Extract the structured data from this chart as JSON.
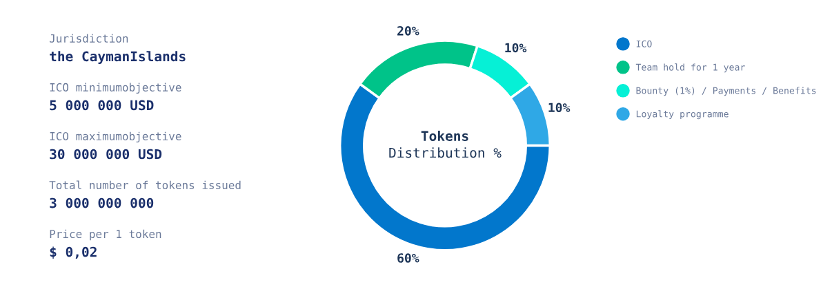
{
  "chart_data": [
    {
      "type": "other",
      "annotations": [
        "Jurisdiction",
        "the CaymanIslands",
        "ICO minimumobjective",
        "5 000 000 USD",
        "ICO maximumobjective",
        "30 000 000 USD",
        "Total number of tokens issued",
        "3 000 000 000",
        "Price per 1 token",
        "$ 0,02"
      ]
    },
    {
      "type": "donut",
      "title": "Tokens",
      "subtitle": "Distribution %",
      "categories": [
        "ICO",
        "Team hold for 1 year",
        "Bounty (1%) / Payments / Benefits",
        "Loyalty programme"
      ],
      "values": [
        60,
        20,
        10,
        10
      ],
      "colors": [
        "#0277cc",
        "#00c389",
        "#06f0d6",
        "#2fa8e6"
      ],
      "value_labels": [
        "60%",
        "20%",
        "10%",
        "10%"
      ],
      "legend": "right",
      "marker": "circle"
    }
  ]
}
